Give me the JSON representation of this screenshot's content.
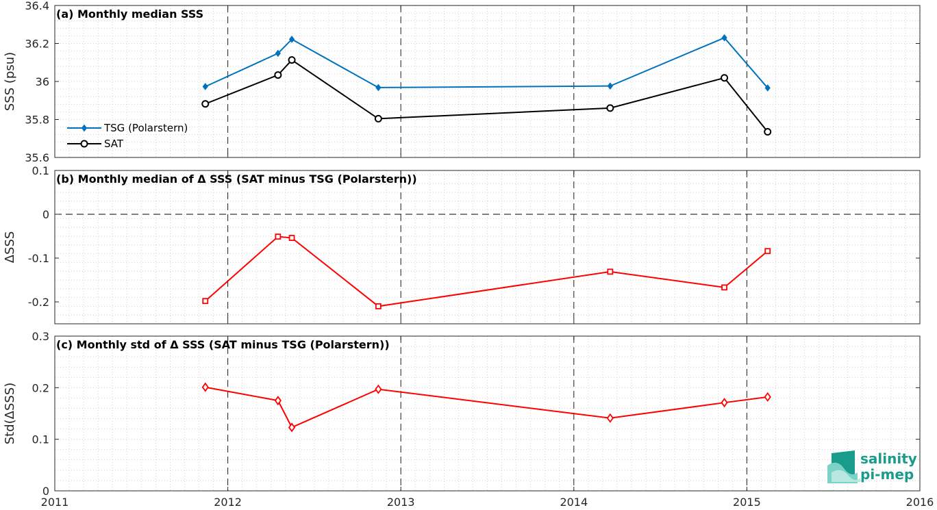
{
  "chart_data": [
    {
      "id": "a",
      "type": "line",
      "title": "(a) Monthly median SSS",
      "ylabel": "SSS (psu)",
      "xlim": [
        2011,
        2016
      ],
      "ylim": [
        35.6,
        36.4
      ],
      "yticks": [
        35.6,
        35.8,
        36,
        36.2,
        36.4
      ],
      "ytick_labels": [
        "35.6",
        "35.8",
        "36",
        "36.2",
        "36.4"
      ],
      "grid": true,
      "legend_position": "left",
      "series": [
        {
          "name": "TSG (Polarstern)",
          "color": "#0072bd",
          "marker": "diamond-filled",
          "x": [
            2011.87,
            2012.29,
            2012.37,
            2012.87,
            2014.21,
            2014.87,
            2015.12
          ],
          "y": [
            35.973,
            36.148,
            36.222,
            35.968,
            35.976,
            36.23,
            35.966
          ]
        },
        {
          "name": "SAT",
          "color": "#000000",
          "marker": "circle-open",
          "x": [
            2011.87,
            2012.29,
            2012.37,
            2012.87,
            2014.21,
            2014.87,
            2015.12
          ],
          "y": [
            35.882,
            36.034,
            36.113,
            35.804,
            35.86,
            36.019,
            35.735
          ]
        }
      ]
    },
    {
      "id": "b",
      "type": "line",
      "title": "(b) Monthly median of Δ SSS (SAT minus TSG (Polarstern))",
      "ylabel": "ΔSSS",
      "xlim": [
        2011,
        2016
      ],
      "ylim": [
        -0.25,
        0.1
      ],
      "yticks": [
        -0.2,
        -0.1,
        0,
        0.1
      ],
      "ytick_labels": [
        "-0.2",
        "-0.1",
        "0",
        "0.1"
      ],
      "zero_line": true,
      "grid": true,
      "series": [
        {
          "color": "#ff0000",
          "marker": "square-open",
          "x": [
            2011.87,
            2012.29,
            2012.37,
            2012.87,
            2014.21,
            2014.87,
            2015.12
          ],
          "y": [
            -0.198,
            -0.051,
            -0.054,
            -0.21,
            -0.131,
            -0.167,
            -0.084
          ]
        }
      ]
    },
    {
      "id": "c",
      "type": "line",
      "title": "(c) Monthly std of Δ SSS (SAT minus TSG (Polarstern))",
      "ylabel": "Std(ΔSSS)",
      "xlim": [
        2011,
        2016
      ],
      "ylim": [
        0,
        0.3
      ],
      "yticks": [
        0,
        0.1,
        0.2,
        0.3
      ],
      "ytick_labels": [
        "0",
        "0.1",
        "0.2",
        "0.3"
      ],
      "xticks": [
        2011,
        2012,
        2013,
        2014,
        2015,
        2016
      ],
      "xtick_labels": [
        "2011",
        "2012",
        "2013",
        "2014",
        "2015",
        "2016"
      ],
      "grid": true,
      "series": [
        {
          "color": "#ff0000",
          "marker": "diamond-open",
          "x": [
            2011.87,
            2012.29,
            2012.37,
            2012.87,
            2014.21,
            2014.87,
            2015.12
          ],
          "y": [
            0.201,
            0.175,
            0.123,
            0.197,
            0.141,
            0.171,
            0.182
          ]
        }
      ]
    }
  ],
  "logo": {
    "line1": "salinity",
    "line2": "pi-mep"
  }
}
